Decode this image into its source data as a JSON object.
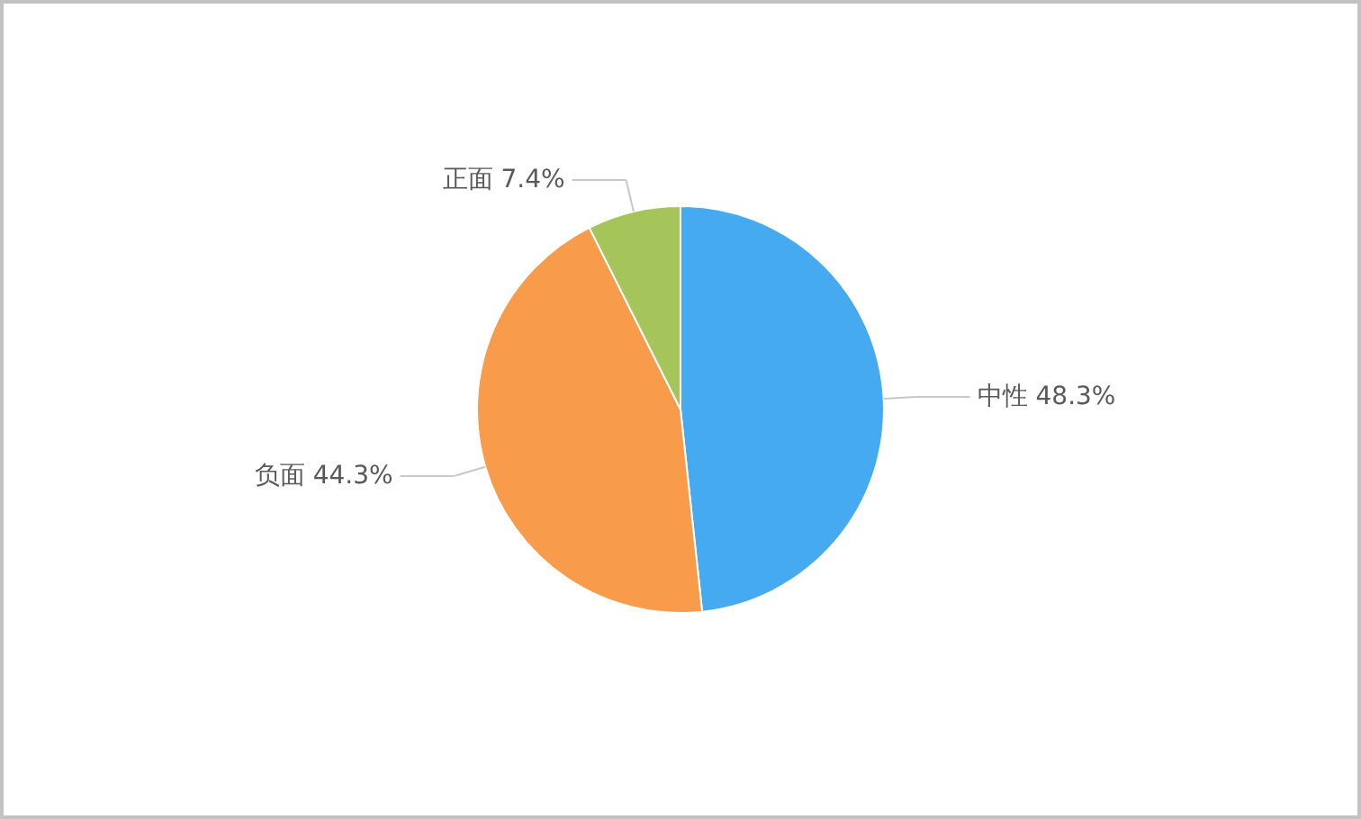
{
  "chart_data": {
    "type": "pie",
    "categories": [
      "中性",
      "负面",
      "正面"
    ],
    "values": [
      48.3,
      44.3,
      7.4
    ],
    "value_labels": [
      "48.3%",
      "44.3%",
      "7.4%"
    ],
    "colors": [
      "#45aaef",
      "#f89b4b",
      "#a5c55b"
    ]
  }
}
